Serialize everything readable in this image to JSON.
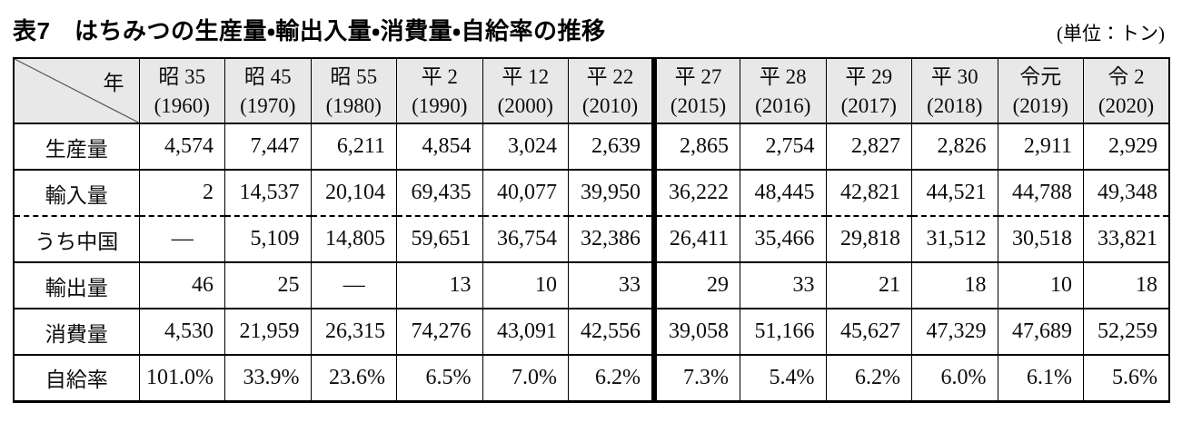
{
  "title": "表7　はちみつの生産量・輸出入量・消費量・自給率の推移",
  "unit_note": "(単位：トン)",
  "table": {
    "corner_label": "年",
    "columns": [
      {
        "era": "昭 35",
        "year": "(1960)"
      },
      {
        "era": "昭 45",
        "year": "(1970)"
      },
      {
        "era": "昭 55",
        "year": "(1980)"
      },
      {
        "era": "平 2",
        "year": "(1990)"
      },
      {
        "era": "平 12",
        "year": "(2000)"
      },
      {
        "era": "平 22",
        "year": "(2010)"
      },
      {
        "era": "平 27",
        "year": "(2015)"
      },
      {
        "era": "平 28",
        "year": "(2016)"
      },
      {
        "era": "平 29",
        "year": "(2017)"
      },
      {
        "era": "平 30",
        "year": "(2018)"
      },
      {
        "era": "令元",
        "year": "(2019)"
      },
      {
        "era": "令 2",
        "year": "(2020)"
      }
    ],
    "rows": [
      {
        "label": "生産量",
        "values": [
          "4,574",
          "7,447",
          "6,211",
          "4,854",
          "3,024",
          "2,639",
          "2,865",
          "2,754",
          "2,827",
          "2,826",
          "2,911",
          "2,929"
        ]
      },
      {
        "label": "輸入量",
        "values": [
          "2",
          "14,537",
          "20,104",
          "69,435",
          "40,077",
          "39,950",
          "36,222",
          "48,445",
          "42,821",
          "44,521",
          "44,788",
          "49,348"
        ]
      },
      {
        "label": "うち中国",
        "values": [
          "—",
          "5,109",
          "14,805",
          "59,651",
          "36,754",
          "32,386",
          "26,411",
          "35,466",
          "29,818",
          "31,512",
          "30,518",
          "33,821"
        ]
      },
      {
        "label": "輸出量",
        "values": [
          "46",
          "25",
          "—",
          "13",
          "10",
          "33",
          "29",
          "33",
          "21",
          "18",
          "10",
          "18"
        ]
      },
      {
        "label": "消費量",
        "values": [
          "4,530",
          "21,959",
          "26,315",
          "74,276",
          "43,091",
          "42,556",
          "39,058",
          "51,166",
          "45,627",
          "47,329",
          "47,689",
          "52,259"
        ]
      },
      {
        "label": "自給率",
        "values": [
          "101.0%",
          "33.9%",
          "23.6%",
          "6.5%",
          "7.0%",
          "6.2%",
          "7.3%",
          "5.4%",
          "6.2%",
          "6.0%",
          "6.1%",
          "5.6%"
        ]
      }
    ]
  },
  "colors": {
    "header_bg": "#e8e8e8",
    "border": "#000000",
    "thick_divider": "#000000"
  }
}
